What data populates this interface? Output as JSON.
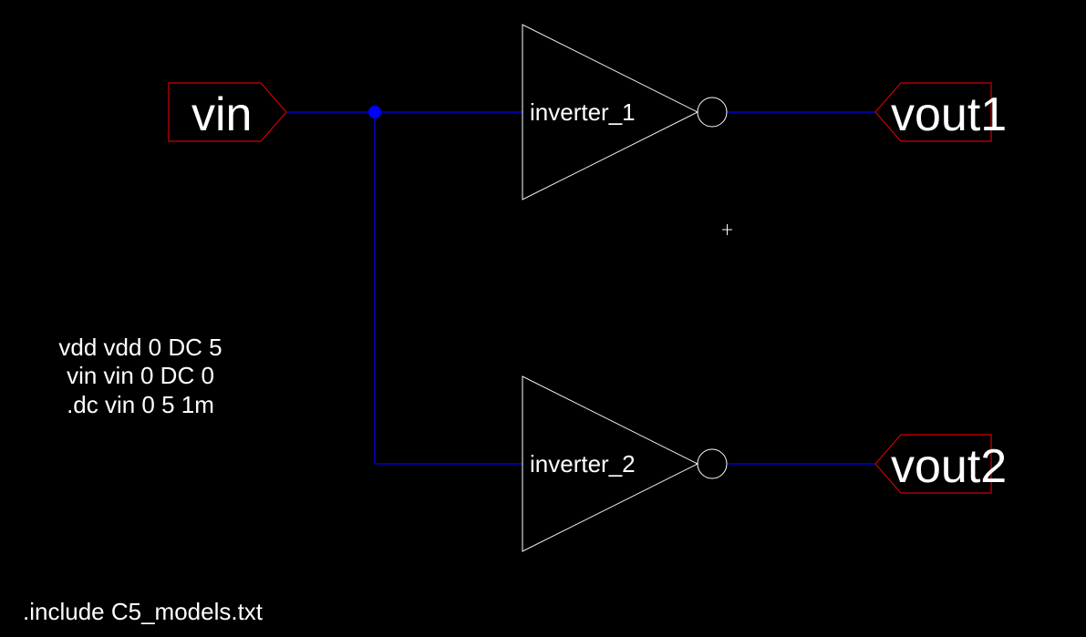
{
  "schematic": {
    "pins": {
      "input": "vin",
      "output1": "vout1",
      "output2": "vout2"
    },
    "instances": {
      "inverter1": "inverter_1",
      "inverter2": "inverter_2"
    },
    "spice_directives": {
      "line1": "vdd vdd 0 DC 5",
      "line2": "vin vin 0 DC 0",
      "line3": ".dc vin 0 5 1m",
      "include": ".include C5_models.txt"
    },
    "colors": {
      "background": "#000000",
      "wire": "#0000ff",
      "pin_outline": "#d00000",
      "symbol": "#ffffff",
      "junction": "#0000ff"
    }
  }
}
